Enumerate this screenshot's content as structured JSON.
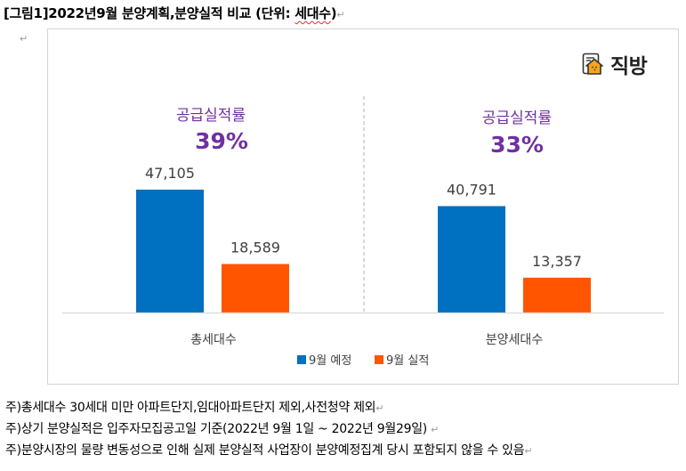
{
  "title": {
    "main": "[그림1]2022년9월 분양계획,분양실적 비교 (단위: ",
    "unit": "세대수",
    "close": ")"
  },
  "logo": {
    "text": "직방",
    "icon": "house-document-icon"
  },
  "colors": {
    "planned": "#0070c0",
    "actual": "#ff5500",
    "rate_text": "#7030a0",
    "axis": "#d9d9d9",
    "label_text": "#404040"
  },
  "chart_data": {
    "type": "bar",
    "title": "2022년9월 분양계획,분양실적 비교",
    "unit": "세대수",
    "categories": [
      "총세대수",
      "분양세대수"
    ],
    "series": [
      {
        "name": "9월 예정",
        "values": [
          47105,
          40791
        ],
        "labels": [
          "47,105",
          "40,791"
        ]
      },
      {
        "name": "9월 실적",
        "values": [
          18589,
          13357
        ],
        "labels": [
          "18,589",
          "13,357"
        ]
      }
    ],
    "annotations": [
      {
        "label": "공급실적률",
        "value": "39%"
      },
      {
        "label": "공급실적률",
        "value": "33%"
      }
    ],
    "ylim": [
      0,
      47105
    ],
    "grid": false,
    "legend": "bottom"
  },
  "notes": [
    "주)총세대수 30세대 미만 아파트단지,임대아파트단지 제외,사전청약 제외",
    "주)상기 분양실적은 입주자모집공고일 기준(2022년 9월 1일 ~ 2022년 9월29일) ",
    "주)분양시장의 물량 변동성으로 인해 실제 분양실적 사업장이 분양예정집계 당시 포함되지 않을 수 있음"
  ]
}
